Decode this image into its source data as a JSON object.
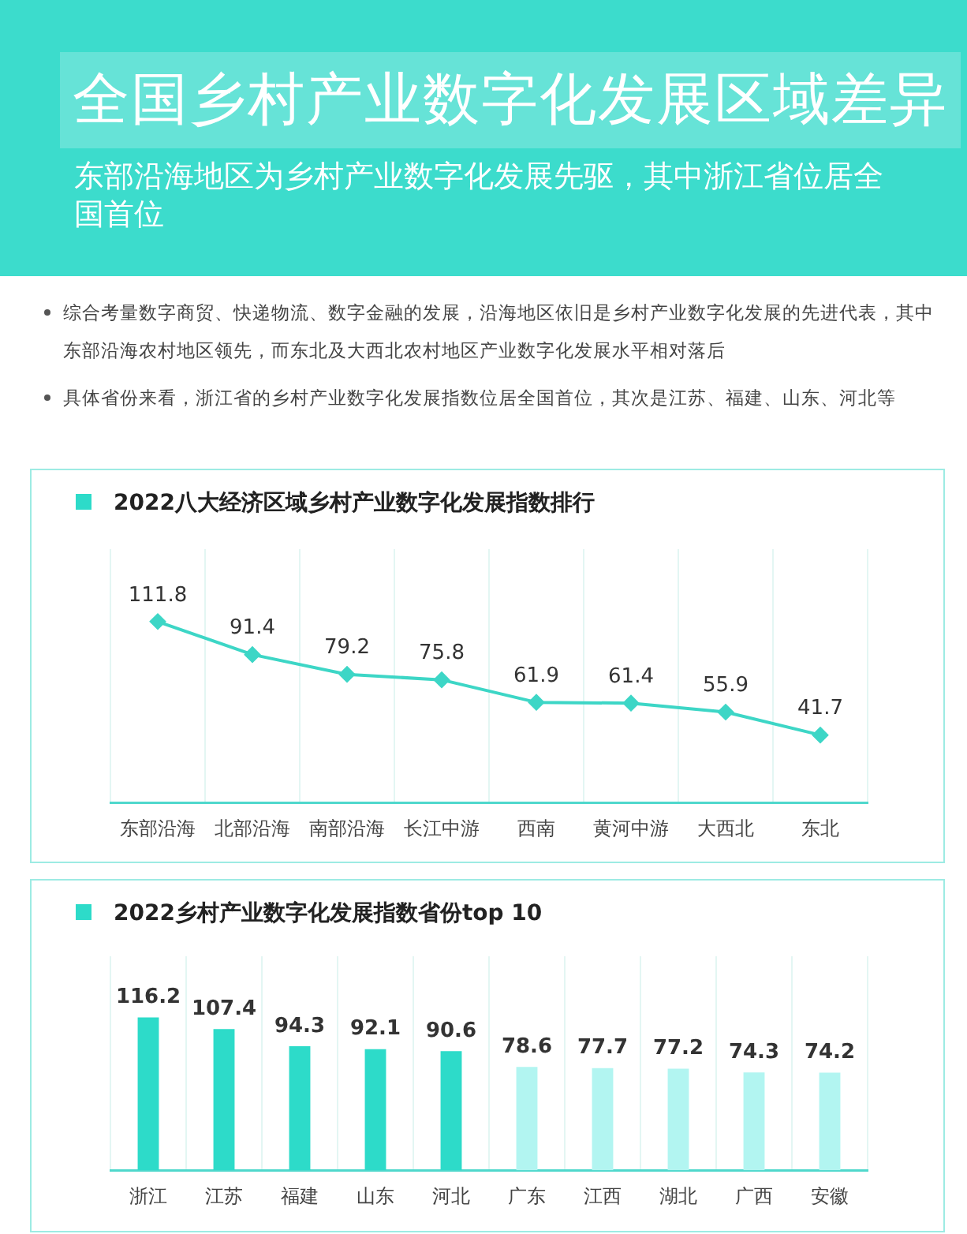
{
  "chart_data": [
    {
      "type": "other",
      "title": "全国乡村产业数字化发展区域差异",
      "subtitle": "东部沿海地区为乡村产业数字化发展先驱，其中浙江省位居全国首位",
      "annotations": [
        "综合考量数字商贸、快递物流、数字金融的发展，沿海地区依旧是乡村产业数字化发展的先进代表，其中东部沿海农村地区领先，而东北及大西北农村地区产业数字化发展水平相对落后",
        "具体省份来看，浙江省的乡村产业数字化发展指数位居全国首位，其次是江苏、福建、山东、河北等"
      ]
    },
    {
      "type": "line",
      "title": "2022八大经济区域乡村产业数字化发展指数排行",
      "categories": [
        "东部沿海",
        "北部沿海",
        "南部沿海",
        "长江中游",
        "西南",
        "黄河中游",
        "大西北",
        "东北"
      ],
      "series": [
        {
          "color": "#3dd6c6",
          "values": [
            111.8,
            91.4,
            79.2,
            75.8,
            61.9,
            61.4,
            55.9,
            41.7
          ]
        }
      ],
      "marker": "diamond",
      "data_labels": true,
      "grid": "x",
      "legend": false,
      "tick_labels": "x"
    },
    {
      "type": "bar",
      "title": "2022乡村产业数字化发展指数省份top 10",
      "categories": [
        "浙江",
        "江苏",
        "福建",
        "山东",
        "河北",
        "广东",
        "江西",
        "湖北",
        "广西",
        "安徽"
      ],
      "values": [
        116.2,
        107.4,
        94.3,
        92.1,
        90.6,
        78.6,
        77.7,
        77.2,
        74.3,
        74.2
      ],
      "colors": [
        "#2ddbc9",
        "#2ddbc9",
        "#2ddbc9",
        "#2ddbc9",
        "#2ddbc9",
        "#b2f5f1",
        "#b2f5f1",
        "#b2f5f1",
        "#b2f5f1",
        "#b2f5f1"
      ],
      "data_labels": true,
      "grid": "x",
      "legend": false,
      "tick_labels": "x"
    }
  ]
}
